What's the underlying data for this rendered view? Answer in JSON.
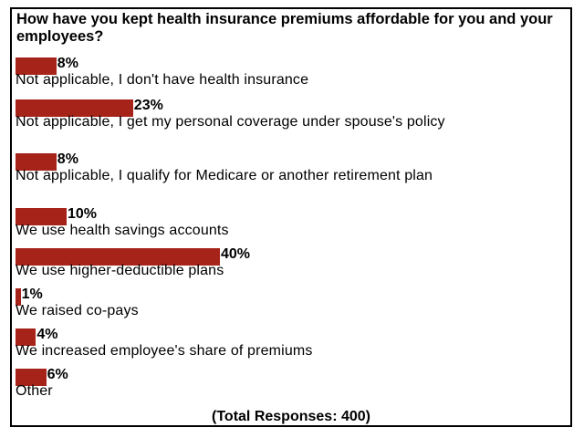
{
  "chart_data": {
    "type": "bar",
    "orientation": "horizontal",
    "title": "How have you kept health insurance premiums affordable for you and your employees?",
    "categories": [
      "Not applicable, I don't have health insurance",
      "Not applicable, I get my personal coverage under spouse's policy",
      "Not applicable, I qualify for Medicare or another retirement plan",
      "We use health savings accounts",
      "We use higher-deductible plans",
      "We raised co-pays",
      "We increased employee's share of premiums",
      "Other"
    ],
    "values": [
      8,
      23,
      8,
      10,
      40,
      1,
      4,
      6
    ],
    "value_labels": [
      "8%",
      "23%",
      "8%",
      "10%",
      "40%",
      "1%",
      "4%",
      "6%"
    ],
    "unit": "%",
    "bar_color": "#a6231a",
    "footer": "(Total Responses: 400)"
  }
}
